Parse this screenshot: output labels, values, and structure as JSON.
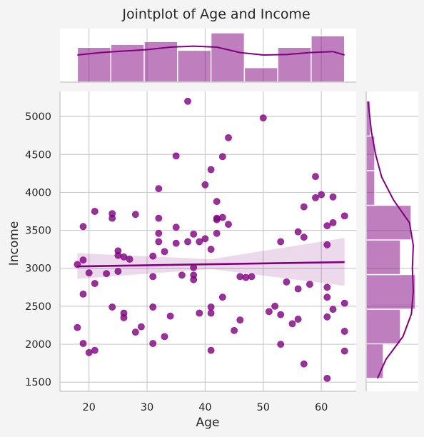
{
  "chart_data": {
    "type": "scatter",
    "title": "Jointplot of Age and Income",
    "xlabel": "Age",
    "ylabel": "Income",
    "xlim": [
      15,
      66
    ],
    "ylim": [
      1380,
      5330
    ],
    "x_ticks": [
      20,
      30,
      40,
      50,
      60
    ],
    "y_ticks": [
      1500,
      2000,
      2500,
      3000,
      3500,
      4000,
      4500,
      5000
    ],
    "grid": true,
    "color": "#800080",
    "points": [
      {
        "x": 18,
        "y": 3050
      },
      {
        "x": 18,
        "y": 2220
      },
      {
        "x": 19,
        "y": 3550
      },
      {
        "x": 19,
        "y": 3110
      },
      {
        "x": 19,
        "y": 2660
      },
      {
        "x": 19,
        "y": 2010
      },
      {
        "x": 20,
        "y": 2940
      },
      {
        "x": 20,
        "y": 1890
      },
      {
        "x": 21,
        "y": 3750
      },
      {
        "x": 21,
        "y": 2800
      },
      {
        "x": 21,
        "y": 1920
      },
      {
        "x": 23,
        "y": 2930
      },
      {
        "x": 24,
        "y": 3720
      },
      {
        "x": 24,
        "y": 3660
      },
      {
        "x": 24,
        "y": 2490
      },
      {
        "x": 25,
        "y": 3230
      },
      {
        "x": 25,
        "y": 3170
      },
      {
        "x": 25,
        "y": 2960
      },
      {
        "x": 26,
        "y": 3150
      },
      {
        "x": 26,
        "y": 2410
      },
      {
        "x": 26,
        "y": 2350
      },
      {
        "x": 27,
        "y": 3120
      },
      {
        "x": 28,
        "y": 3710
      },
      {
        "x": 28,
        "y": 2160
      },
      {
        "x": 29,
        "y": 2230
      },
      {
        "x": 31,
        "y": 3160
      },
      {
        "x": 31,
        "y": 2890
      },
      {
        "x": 31,
        "y": 2490
      },
      {
        "x": 31,
        "y": 2010
      },
      {
        "x": 32,
        "y": 4050
      },
      {
        "x": 32,
        "y": 3660
      },
      {
        "x": 32,
        "y": 3460
      },
      {
        "x": 32,
        "y": 3350
      },
      {
        "x": 33,
        "y": 3220
      },
      {
        "x": 33,
        "y": 2100
      },
      {
        "x": 34,
        "y": 2370
      },
      {
        "x": 35,
        "y": 4480
      },
      {
        "x": 35,
        "y": 3540
      },
      {
        "x": 35,
        "y": 3330
      },
      {
        "x": 36,
        "y": 2910
      },
      {
        "x": 37,
        "y": 5200
      },
      {
        "x": 37,
        "y": 3350
      },
      {
        "x": 38,
        "y": 3450
      },
      {
        "x": 38,
        "y": 3010
      },
      {
        "x": 38,
        "y": 2910
      },
      {
        "x": 38,
        "y": 2850
      },
      {
        "x": 39,
        "y": 3350
      },
      {
        "x": 39,
        "y": 2410
      },
      {
        "x": 40,
        "y": 4100
      },
      {
        "x": 40,
        "y": 3390
      },
      {
        "x": 41,
        "y": 4300
      },
      {
        "x": 41,
        "y": 3250
      },
      {
        "x": 41,
        "y": 2490
      },
      {
        "x": 41,
        "y": 2410
      },
      {
        "x": 41,
        "y": 1920
      },
      {
        "x": 42,
        "y": 3880
      },
      {
        "x": 42,
        "y": 3660
      },
      {
        "x": 42,
        "y": 3640
      },
      {
        "x": 42,
        "y": 3460
      },
      {
        "x": 43,
        "y": 4470
      },
      {
        "x": 43,
        "y": 3670
      },
      {
        "x": 43,
        "y": 2620
      },
      {
        "x": 44,
        "y": 4720
      },
      {
        "x": 44,
        "y": 3580
      },
      {
        "x": 45,
        "y": 2180
      },
      {
        "x": 46,
        "y": 2890
      },
      {
        "x": 46,
        "y": 2320
      },
      {
        "x": 47,
        "y": 2880
      },
      {
        "x": 48,
        "y": 2890
      },
      {
        "x": 50,
        "y": 4980
      },
      {
        "x": 51,
        "y": 2430
      },
      {
        "x": 52,
        "y": 2500
      },
      {
        "x": 53,
        "y": 3350
      },
      {
        "x": 53,
        "y": 2390
      },
      {
        "x": 53,
        "y": 2000
      },
      {
        "x": 54,
        "y": 2820
      },
      {
        "x": 55,
        "y": 2270
      },
      {
        "x": 56,
        "y": 3480
      },
      {
        "x": 56,
        "y": 2730
      },
      {
        "x": 56,
        "y": 2330
      },
      {
        "x": 57,
        "y": 3810
      },
      {
        "x": 57,
        "y": 3410
      },
      {
        "x": 57,
        "y": 1740
      },
      {
        "x": 58,
        "y": 2790
      },
      {
        "x": 59,
        "y": 4210
      },
      {
        "x": 59,
        "y": 3930
      },
      {
        "x": 60,
        "y": 3970
      },
      {
        "x": 61,
        "y": 3560
      },
      {
        "x": 61,
        "y": 3310
      },
      {
        "x": 61,
        "y": 2750
      },
      {
        "x": 61,
        "y": 2620
      },
      {
        "x": 61,
        "y": 2360
      },
      {
        "x": 61,
        "y": 1550
      },
      {
        "x": 62,
        "y": 3940
      },
      {
        "x": 62,
        "y": 3600
      },
      {
        "x": 62,
        "y": 2460
      },
      {
        "x": 64,
        "y": 3690
      },
      {
        "x": 64,
        "y": 2540
      },
      {
        "x": 64,
        "y": 2170
      },
      {
        "x": 64,
        "y": 1910
      }
    ],
    "regression": {
      "x": [
        18,
        64
      ],
      "y": [
        3025,
        3082
      ],
      "ci_upper": [
        3200,
        3400
      ],
      "ci_lower": [
        2860,
        2770
      ],
      "ci_mid_x": 41,
      "ci_mid_upper": 3120,
      "ci_mid_lower": 2990
    },
    "age_histogram": {
      "bin_edges": [
        18,
        23.75,
        29.5,
        35.25,
        41,
        46.75,
        52.5,
        58.25,
        64
      ],
      "counts": [
        12,
        13,
        14,
        11,
        17,
        5,
        12,
        16
      ],
      "kde": [
        [
          18,
          0.55
        ],
        [
          22,
          0.6
        ],
        [
          26,
          0.63
        ],
        [
          30,
          0.66
        ],
        [
          34,
          0.71
        ],
        [
          38,
          0.73
        ],
        [
          42,
          0.71
        ],
        [
          46,
          0.6
        ],
        [
          50,
          0.55
        ],
        [
          54,
          0.56
        ],
        [
          58,
          0.6
        ],
        [
          62,
          0.62
        ],
        [
          64,
          0.55
        ]
      ]
    },
    "income_histogram": {
      "bin_edges": [
        1550,
        2006,
        2462,
        2918,
        3374,
        3830,
        4286,
        4742,
        5200
      ],
      "counts": [
        8,
        16,
        23,
        16,
        21,
        4,
        4,
        2
      ],
      "kde": [
        [
          1550,
          0.24
        ],
        [
          1800,
          0.42
        ],
        [
          2100,
          0.78
        ],
        [
          2400,
          0.96
        ],
        [
          2700,
          1.0
        ],
        [
          3000,
          0.98
        ],
        [
          3300,
          1.0
        ],
        [
          3600,
          0.92
        ],
        [
          3900,
          0.58
        ],
        [
          4200,
          0.33
        ],
        [
          4500,
          0.2
        ],
        [
          4800,
          0.11
        ],
        [
          5200,
          0.04
        ]
      ]
    }
  }
}
